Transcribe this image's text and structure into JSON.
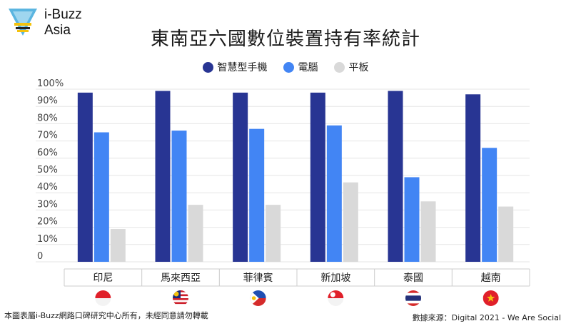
{
  "brand": {
    "name_line1": "i-Buzz",
    "name_line2": "Asia"
  },
  "chart_data": {
    "type": "bar",
    "title": "東南亞六國數位裝置持有率統計",
    "categories": [
      "印尼",
      "馬來西亞",
      "菲律賓",
      "新加坡",
      "泰國",
      "越南"
    ],
    "series": [
      {
        "name": "智慧型手機",
        "color": "#283593",
        "values": [
          98,
          99,
          98,
          98,
          99,
          97
        ]
      },
      {
        "name": "電腦",
        "color": "#4285f4",
        "values": [
          75,
          76,
          77,
          79,
          49,
          66
        ]
      },
      {
        "name": "平板",
        "color": "#d9d9d9",
        "values": [
          19,
          33,
          33,
          46,
          35,
          32
        ]
      }
    ],
    "y_ticks": [
      "0",
      "10%",
      "20%",
      "30%",
      "40%",
      "50%",
      "60%",
      "70%",
      "80%",
      "90%",
      "100%"
    ],
    "ylim": [
      0,
      100
    ],
    "grid": true,
    "legend_position": "top-center",
    "flags": [
      "indonesia-flag-icon",
      "malaysia-flag-icon",
      "philippines-flag-icon",
      "singapore-flag-icon",
      "thailand-flag-icon",
      "vietnam-flag-icon"
    ]
  },
  "footer": {
    "copyright": "本圖表屬i-Buzz網路口碑研究中心所有，未經同意請勿轉載",
    "source": "數據來源：Digital 2021 - We Are Social"
  }
}
